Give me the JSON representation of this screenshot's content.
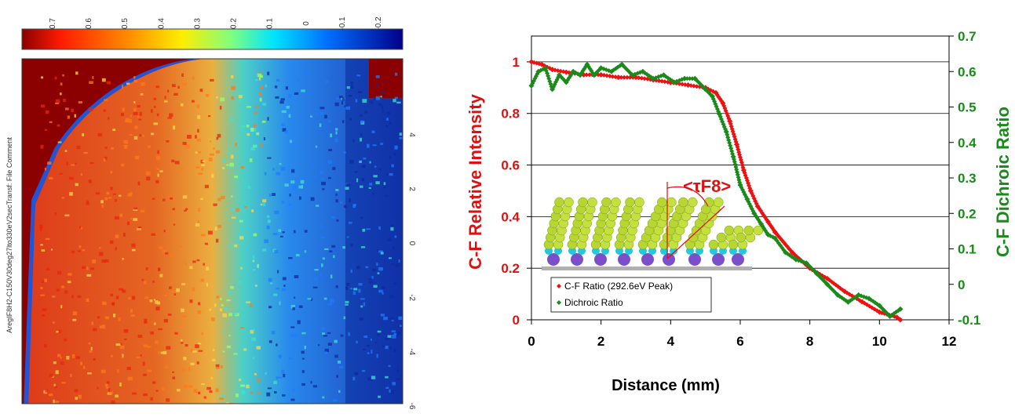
{
  "colorbar": {
    "ticks": [
      "0.7",
      "0.6",
      "0.5",
      "0.4",
      "0.3",
      "0.2",
      "0.1",
      "0",
      "-0.1",
      "-0.2"
    ]
  },
  "map": {
    "side_label": "AregIF8H2-C150V30deg27lto330eV2secTransf: File Comment",
    "y_ticks": [
      "4",
      "2",
      "0",
      "-2",
      "-4",
      "-6"
    ]
  },
  "colors": {
    "cf_ratio": "#ee1111",
    "dichroic": "#1a8a1a",
    "left_axis_label": "#e01010",
    "right_axis_label": "#1a8a1a"
  },
  "chart_data": {
    "type": "scatter",
    "xlabel": "Distance (mm)",
    "ylabel": "C-F Relative Intensity",
    "y2label": "C-F Dichroic Ratio",
    "xlim": [
      0,
      12
    ],
    "ylim": [
      0,
      1.1
    ],
    "y2lim": [
      -0.1,
      0.7
    ],
    "x_ticks": [
      "0",
      "2",
      "4",
      "6",
      "8",
      "10",
      "12"
    ],
    "y_ticks": [
      "0",
      "0.2",
      "0.4",
      "0.6",
      "0.8",
      "1"
    ],
    "y2_ticks": [
      "-0.1",
      "0",
      "0.1",
      "0.2",
      "0.3",
      "0.4",
      "0.5",
      "0.6",
      "0.7"
    ],
    "grid": "horizontal",
    "legend_position": "bottom-left",
    "annotation": "<τF8>",
    "series": [
      {
        "name": "C-F Ratio (292.6eV Peak)",
        "axis": "left",
        "marker": "diamond",
        "color": "#ee1111",
        "x": [
          0,
          0.3,
          0.6,
          1.0,
          1.5,
          2.0,
          2.5,
          3.0,
          3.5,
          4.0,
          4.5,
          5.0,
          5.3,
          5.5,
          5.7,
          5.9,
          6.1,
          6.3,
          6.5,
          6.8,
          7.0,
          7.5,
          8.0,
          8.5,
          9.0,
          9.5,
          10.0,
          10.5,
          10.6
        ],
        "y": [
          1.0,
          0.99,
          0.97,
          0.96,
          0.95,
          0.95,
          0.94,
          0.94,
          0.93,
          0.92,
          0.91,
          0.9,
          0.88,
          0.84,
          0.77,
          0.68,
          0.58,
          0.5,
          0.44,
          0.38,
          0.34,
          0.26,
          0.2,
          0.16,
          0.11,
          0.07,
          0.03,
          0.01,
          0.0
        ]
      },
      {
        "name": "Dichroic Ratio",
        "axis": "right",
        "marker": "diamond",
        "color": "#1a8a1a",
        "x": [
          0,
          0.2,
          0.4,
          0.6,
          0.8,
          1.0,
          1.2,
          1.4,
          1.6,
          1.8,
          2.0,
          2.3,
          2.6,
          2.9,
          3.2,
          3.5,
          3.8,
          4.1,
          4.4,
          4.7,
          5.0,
          5.2,
          5.4,
          5.6,
          5.8,
          6.0,
          6.2,
          6.4,
          6.6,
          6.8,
          7.0,
          7.3,
          7.6,
          7.9,
          8.2,
          8.5,
          8.8,
          9.1,
          9.4,
          9.7,
          10.0,
          10.3,
          10.6
        ],
        "y": [
          0.56,
          0.6,
          0.61,
          0.55,
          0.59,
          0.57,
          0.6,
          0.59,
          0.62,
          0.59,
          0.61,
          0.6,
          0.62,
          0.59,
          0.6,
          0.58,
          0.59,
          0.57,
          0.58,
          0.58,
          0.55,
          0.53,
          0.48,
          0.43,
          0.36,
          0.28,
          0.24,
          0.2,
          0.17,
          0.14,
          0.13,
          0.09,
          0.07,
          0.06,
          0.03,
          0.0,
          -0.03,
          -0.05,
          -0.03,
          -0.04,
          -0.06,
          -0.09,
          -0.07
        ]
      }
    ]
  }
}
